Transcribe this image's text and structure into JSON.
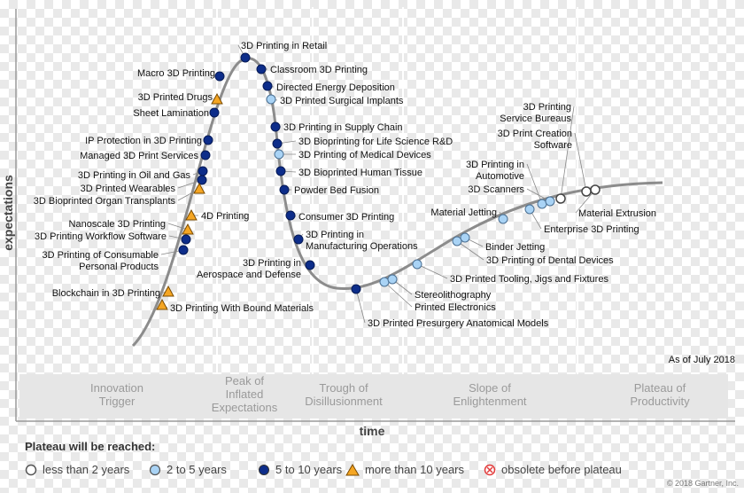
{
  "axis": {
    "y_label": "expectations",
    "x_label": "time"
  },
  "phases": [
    {
      "lines": [
        "Innovation",
        "Trigger"
      ]
    },
    {
      "lines": [
        "Peak of",
        "Inflated",
        "Expectations"
      ]
    },
    {
      "lines": [
        "Trough of",
        "Disillusionment"
      ]
    },
    {
      "lines": [
        "Slope of",
        "Enlightenment"
      ]
    },
    {
      "lines": [
        "Plateau of",
        "Productivity"
      ]
    }
  ],
  "as_of": "As of July 2018",
  "copyright": "© 2018 Gartner, Inc.",
  "legend": {
    "title": "Plateau will be reached:",
    "items": [
      {
        "type": "lt2",
        "label": "less than 2 years"
      },
      {
        "type": "2to5",
        "label": "2 to 5 years"
      },
      {
        "type": "5to10",
        "label": "5 to 10 years"
      },
      {
        "type": "gt10",
        "label": "more than 10 years"
      },
      {
        "type": "obsolete",
        "label": "obsolete before plateau"
      }
    ]
  },
  "colors": {
    "lt2": "#ffffff",
    "2to5": "#a9d3f5",
    "5to10": "#0d2d8a",
    "gt10": "#f5a623",
    "obsolete": "#e23b3b",
    "curve": "#8c8c8c"
  },
  "technologies": [
    {
      "lines": [
        "3D Printing in Retail"
      ],
      "type": "5to10"
    },
    {
      "lines": [
        "Macro 3D Printing"
      ],
      "type": "5to10"
    },
    {
      "lines": [
        "Classroom 3D Printing"
      ],
      "type": "5to10"
    },
    {
      "lines": [
        "Directed Energy Deposition"
      ],
      "type": "5to10"
    },
    {
      "lines": [
        "3D Printed Surgical Implants"
      ],
      "type": "2to5"
    },
    {
      "lines": [
        "3D Printed Drugs"
      ],
      "type": "gt10"
    },
    {
      "lines": [
        "Sheet Lamination"
      ],
      "type": "5to10"
    },
    {
      "lines": [
        "3D Printing in Supply Chain"
      ],
      "type": "5to10"
    },
    {
      "lines": [
        "3D Bioprinting for Life Science R&D"
      ],
      "type": "5to10"
    },
    {
      "lines": [
        "IP Protection in 3D Printing"
      ],
      "type": "5to10"
    },
    {
      "lines": [
        "3D Printing of Medical Devices"
      ],
      "type": "2to5"
    },
    {
      "lines": [
        "Managed 3D Print Services"
      ],
      "type": "5to10"
    },
    {
      "lines": [
        "3D Bioprinted Human Tissue"
      ],
      "type": "5to10"
    },
    {
      "lines": [
        "3D Printing in Oil and Gas"
      ],
      "type": "5to10"
    },
    {
      "lines": [
        "3D Printed Wearables"
      ],
      "type": "5to10"
    },
    {
      "lines": [
        "Powder Bed Fusion"
      ],
      "type": "5to10"
    },
    {
      "lines": [
        "3D Bioprinted Organ Transplants"
      ],
      "type": "gt10"
    },
    {
      "lines": [
        "4D Printing"
      ],
      "type": "gt10"
    },
    {
      "lines": [
        "Consumer 3D Printing"
      ],
      "type": "5to10"
    },
    {
      "lines": [
        "Nanoscale 3D Printing"
      ],
      "type": "gt10"
    },
    {
      "lines": [
        "3D Printing Workflow Software"
      ],
      "type": "5to10"
    },
    {
      "lines": [
        "3D Printing in",
        "Manufacturing Operations"
      ],
      "type": "5to10"
    },
    {
      "lines": [
        "3D Printing of Consumable",
        "Personal Products"
      ],
      "type": "5to10"
    },
    {
      "lines": [
        "3D Printing in",
        "Aerospace and Defense"
      ],
      "type": "5to10"
    },
    {
      "lines": [
        "Blockchain in 3D Printing"
      ],
      "type": "gt10"
    },
    {
      "lines": [
        "3D Printing With Bound Materials"
      ],
      "type": "gt10"
    },
    {
      "lines": [
        "3D Printed Presurgery Anatomical Models"
      ],
      "type": "5to10"
    },
    {
      "lines": [
        "Printed Electronics"
      ],
      "type": "2to5"
    },
    {
      "lines": [
        "Stereolithography"
      ],
      "type": "2to5"
    },
    {
      "lines": [
        "3D Printed Tooling, Jigs and Fixtures"
      ],
      "type": "2to5"
    },
    {
      "lines": [
        "3D Printing of Dental Devices"
      ],
      "type": "2to5"
    },
    {
      "lines": [
        "Binder Jetting"
      ],
      "type": "2to5"
    },
    {
      "lines": [
        "Material Jetting"
      ],
      "type": "2to5"
    },
    {
      "lines": [
        "Enterprise 3D Printing"
      ],
      "type": "2to5"
    },
    {
      "lines": [
        "3D Printing in",
        "Automotive"
      ],
      "type": "2to5"
    },
    {
      "lines": [
        "3D Scanners"
      ],
      "type": "2to5"
    },
    {
      "lines": [
        "3D Printing",
        "Service Bureaus"
      ],
      "type": "lt2"
    },
    {
      "lines": [
        "3D Print Creation",
        "Software"
      ],
      "type": "lt2"
    },
    {
      "lines": [
        "Material Extrusion"
      ],
      "type": "lt2"
    }
  ]
}
